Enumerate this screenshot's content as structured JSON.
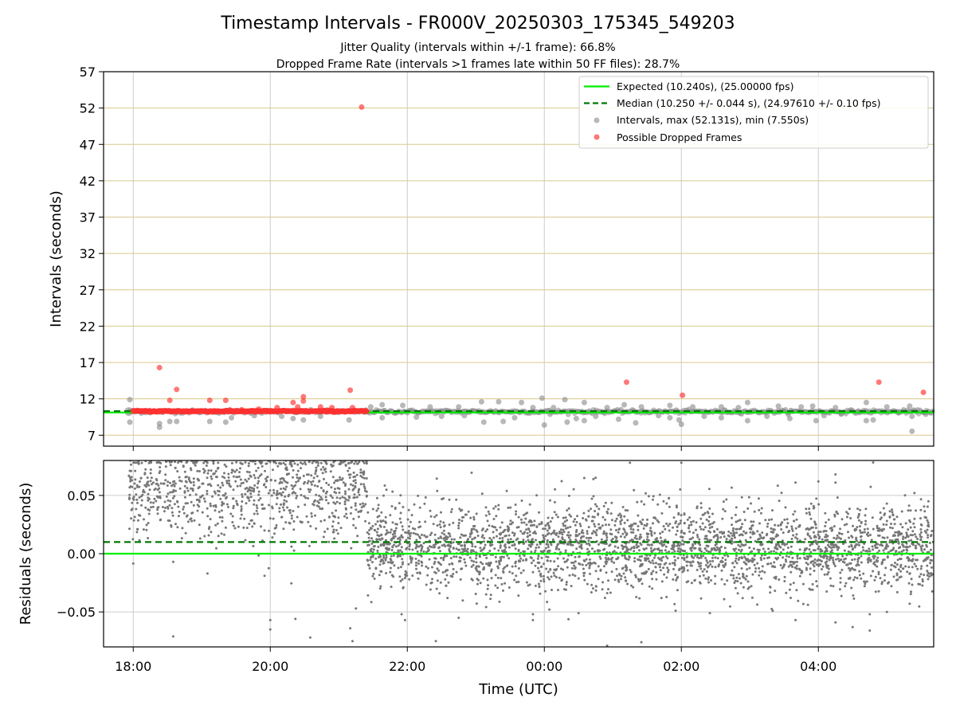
{
  "chart_data": [
    {
      "type": "scatter",
      "title": "Timestamp Intervals - FR000V_20250303_175345_549203",
      "subtitle_lines": [
        "Jitter Quality (intervals within +/-1 frame): 66.8%",
        "Dropped Frame Rate (intervals >1 frames late within 50 FF files): 28.7%"
      ],
      "xlabel": "",
      "ylabel": "Intervals (seconds)",
      "x_axis_type": "time",
      "xlim": [
        "17:34",
        "05:41"
      ],
      "x_ticks": [
        {
          "time": "18:00",
          "label": ""
        },
        {
          "time": "20:00",
          "label": ""
        },
        {
          "time": "22:00",
          "label": ""
        },
        {
          "time": "00:00",
          "label": ""
        },
        {
          "time": "02:00",
          "label": ""
        },
        {
          "time": "04:00",
          "label": ""
        }
      ],
      "ylim": [
        5.5,
        57
      ],
      "y_ticks": [
        7,
        12,
        17,
        22,
        27,
        32,
        37,
        42,
        47,
        52,
        57
      ],
      "grid": "on",
      "grid_colors": {
        "horizontal": "#d8c98c",
        "vertical": "#cccccc"
      },
      "legend_position": "top-right",
      "legend": [
        {
          "label": "Expected (10.240s), (25.00000 fps)",
          "kind": "solid-line",
          "color": "#00ee00"
        },
        {
          "label": "Median (10.250 +/- 0.044 s), (24.97610 +/- 0.10 fps)",
          "kind": "dashed-line",
          "color": "#007a00"
        },
        {
          "label": "Intervals, max (52.131s), min (7.550s)",
          "kind": "marker",
          "color": "#888888"
        },
        {
          "label": "Possible Dropped Frames",
          "kind": "marker",
          "color": "#ff3030"
        }
      ],
      "reference_lines": [
        {
          "name": "expected",
          "y": 10.24,
          "color": "#00ee00",
          "style": "solid"
        },
        {
          "name": "median",
          "y": 10.25,
          "color": "#007a00",
          "style": "dashed"
        }
      ],
      "series": [
        {
          "name": "Intervals",
          "color": "#888888",
          "typical_value": 10.25,
          "outliers": [
            {
              "t": "17:57",
              "y": 11.9
            },
            {
              "t": "17:57",
              "y": 8.8
            },
            {
              "t": "18:23",
              "y": 8.6
            },
            {
              "t": "18:23",
              "y": 8.1
            },
            {
              "t": "18:32",
              "y": 8.9
            },
            {
              "t": "18:38",
              "y": 8.9
            },
            {
              "t": "19:07",
              "y": 8.9
            },
            {
              "t": "19:21",
              "y": 8.8
            },
            {
              "t": "19:26",
              "y": 9.4
            },
            {
              "t": "19:46",
              "y": 9.7
            },
            {
              "t": "20:10",
              "y": 9.6
            },
            {
              "t": "20:20",
              "y": 9.3
            },
            {
              "t": "20:29",
              "y": 9.1
            },
            {
              "t": "20:44",
              "y": 9.6
            },
            {
              "t": "21:09",
              "y": 9.1
            },
            {
              "t": "21:28",
              "y": 10.9
            },
            {
              "t": "21:38",
              "y": 9.4
            },
            {
              "t": "21:38",
              "y": 11.2
            },
            {
              "t": "21:56",
              "y": 11.1
            },
            {
              "t": "22:08",
              "y": 9.5
            },
            {
              "t": "22:20",
              "y": 10.9
            },
            {
              "t": "22:30",
              "y": 9.6
            },
            {
              "t": "22:45",
              "y": 10.9
            },
            {
              "t": "22:50",
              "y": 9.7
            },
            {
              "t": "23:05",
              "y": 11.6
            },
            {
              "t": "23:07",
              "y": 8.8
            },
            {
              "t": "23:20",
              "y": 11.6
            },
            {
              "t": "23:24",
              "y": 8.9
            },
            {
              "t": "23:34",
              "y": 9.4
            },
            {
              "t": "23:40",
              "y": 11.5
            },
            {
              "t": "23:50",
              "y": 10.8
            },
            {
              "t": "23:58",
              "y": 12.1
            },
            {
              "t": "00:00",
              "y": 8.4
            },
            {
              "t": "00:05",
              "y": 9.9
            },
            {
              "t": "00:08",
              "y": 10.8
            },
            {
              "t": "00:18",
              "y": 11.9
            },
            {
              "t": "00:20",
              "y": 8.8
            },
            {
              "t": "00:28",
              "y": 9.3
            },
            {
              "t": "00:35",
              "y": 11.5
            },
            {
              "t": "00:35",
              "y": 9.0
            },
            {
              "t": "00:45",
              "y": 9.6
            },
            {
              "t": "00:55",
              "y": 10.8
            },
            {
              "t": "01:05",
              "y": 9.2
            },
            {
              "t": "01:10",
              "y": 11.2
            },
            {
              "t": "01:20",
              "y": 8.7
            },
            {
              "t": "01:25",
              "y": 10.9
            },
            {
              "t": "01:40",
              "y": 9.7
            },
            {
              "t": "01:50",
              "y": 11.1
            },
            {
              "t": "01:50",
              "y": 9.4
            },
            {
              "t": "01:58",
              "y": 9.1
            },
            {
              "t": "02:00",
              "y": 8.5
            },
            {
              "t": "02:10",
              "y": 10.9
            },
            {
              "t": "02:20",
              "y": 9.6
            },
            {
              "t": "02:35",
              "y": 10.9
            },
            {
              "t": "02:35",
              "y": 9.4
            },
            {
              "t": "02:50",
              "y": 10.8
            },
            {
              "t": "02:58",
              "y": 11.5
            },
            {
              "t": "02:58",
              "y": 9.0
            },
            {
              "t": "03:15",
              "y": 9.6
            },
            {
              "t": "03:25",
              "y": 11.0
            },
            {
              "t": "03:35",
              "y": 9.3
            },
            {
              "t": "03:45",
              "y": 10.9
            },
            {
              "t": "03:55",
              "y": 11.0
            },
            {
              "t": "03:58",
              "y": 9.0
            },
            {
              "t": "04:05",
              "y": 9.7
            },
            {
              "t": "04:15",
              "y": 10.8
            },
            {
              "t": "04:20",
              "y": 9.9
            },
            {
              "t": "04:35",
              "y": 10.2
            },
            {
              "t": "04:42",
              "y": 11.5
            },
            {
              "t": "04:42",
              "y": 9.0
            },
            {
              "t": "04:48",
              "y": 9.1
            },
            {
              "t": "05:00",
              "y": 10.9
            },
            {
              "t": "05:10",
              "y": 10.1
            },
            {
              "t": "05:20",
              "y": 11.0
            },
            {
              "t": "05:22",
              "y": 9.6
            },
            {
              "t": "05:22",
              "y": 7.55
            },
            {
              "t": "05:34",
              "y": 9.9
            }
          ]
        },
        {
          "name": "Possible Dropped Frames",
          "color": "#ff3030",
          "dense_band": {
            "t_start": "18:00",
            "t_end": "21:25",
            "y": 10.3
          },
          "points": [
            {
              "t": "18:23",
              "y": 16.3
            },
            {
              "t": "18:32",
              "y": 11.8
            },
            {
              "t": "18:38",
              "y": 13.3
            },
            {
              "t": "19:07",
              "y": 11.8
            },
            {
              "t": "19:21",
              "y": 11.8
            },
            {
              "t": "19:35",
              "y": 10.5
            },
            {
              "t": "19:50",
              "y": 10.6
            },
            {
              "t": "20:06",
              "y": 10.8
            },
            {
              "t": "20:20",
              "y": 11.5
            },
            {
              "t": "20:24",
              "y": 10.9
            },
            {
              "t": "20:29",
              "y": 12.3
            },
            {
              "t": "20:29",
              "y": 11.7
            },
            {
              "t": "20:44",
              "y": 10.9
            },
            {
              "t": "20:54",
              "y": 10.8
            },
            {
              "t": "21:10",
              "y": 13.2
            },
            {
              "t": "21:12",
              "y": 10.8
            },
            {
              "t": "21:20",
              "y": 52.131
            },
            {
              "t": "01:12",
              "y": 14.3
            },
            {
              "t": "02:01",
              "y": 12.5
            },
            {
              "t": "04:53",
              "y": 14.3
            },
            {
              "t": "05:32",
              "y": 12.9
            }
          ]
        }
      ]
    },
    {
      "type": "scatter",
      "title": "",
      "xlabel": "Time (UTC)",
      "ylabel": "Residuals (seconds)",
      "x_axis_type": "time",
      "xlim": [
        "17:34",
        "05:41"
      ],
      "x_ticks": [
        {
          "time": "18:00",
          "label": "18:00"
        },
        {
          "time": "20:00",
          "label": "20:00"
        },
        {
          "time": "22:00",
          "label": "22:00"
        },
        {
          "time": "00:00",
          "label": "00:00"
        },
        {
          "time": "02:00",
          "label": "02:00"
        },
        {
          "time": "04:00",
          "label": "04:00"
        }
      ],
      "ylim": [
        -0.08,
        0.08
      ],
      "y_ticks": [
        {
          "value": 0.05,
          "label": "0.05"
        },
        {
          "value": 0.0,
          "label": "0.00"
        },
        {
          "value": -0.05,
          "label": "−0.05"
        }
      ],
      "grid": "on",
      "reference_lines": [
        {
          "name": "zero",
          "y": 0.0,
          "color": "#00ee00",
          "style": "solid"
        },
        {
          "name": "median-offset",
          "y": 0.01,
          "color": "#007a00",
          "style": "dashed"
        }
      ],
      "series": [
        {
          "name": "",
          "color": "#777777",
          "segments": [
            {
              "t_start": "17:56",
              "t_end": "21:25",
              "mean": 0.055,
              "spread": 0.02,
              "approx_count": 900
            },
            {
              "t_start": "21:25",
              "t_end": "05:41",
              "mean": 0.005,
              "spread": 0.018,
              "approx_count": 2900
            }
          ],
          "outliers": [
            {
              "t": "18:00",
              "y": -0.0085
            },
            {
              "t": "18:35",
              "y": -0.007
            },
            {
              "t": "18:35",
              "y": -0.071
            },
            {
              "t": "19:05",
              "y": -0.017
            },
            {
              "t": "19:55",
              "y": -0.019
            },
            {
              "t": "20:00",
              "y": -0.057
            },
            {
              "t": "20:00",
              "y": -0.065
            },
            {
              "t": "20:22",
              "y": -0.056
            },
            {
              "t": "20:35",
              "y": -0.072
            },
            {
              "t": "21:10",
              "y": -0.064
            },
            {
              "t": "21:12",
              "y": -0.075
            },
            {
              "t": "21:15",
              "y": -0.047
            },
            {
              "t": "21:55",
              "y": -0.052
            },
            {
              "t": "21:58",
              "y": -0.057
            },
            {
              "t": "22:25",
              "y": -0.075
            },
            {
              "t": "22:45",
              "y": -0.055
            },
            {
              "t": "23:50",
              "y": -0.052
            },
            {
              "t": "23:50",
              "y": -0.057
            },
            {
              "t": "00:30",
              "y": -0.051
            },
            {
              "t": "00:55",
              "y": -0.079
            },
            {
              "t": "01:25",
              "y": -0.076
            },
            {
              "t": "01:55",
              "y": -0.049
            },
            {
              "t": "02:25",
              "y": -0.051
            },
            {
              "t": "03:20",
              "y": -0.049
            },
            {
              "t": "03:40",
              "y": -0.057
            },
            {
              "t": "04:15",
              "y": -0.059
            },
            {
              "t": "04:30",
              "y": -0.063
            },
            {
              "t": "04:45",
              "y": -0.052
            },
            {
              "t": "04:45",
              "y": -0.066
            },
            {
              "t": "05:00",
              "y": -0.05
            },
            {
              "t": "05:20",
              "y": -0.043
            },
            {
              "t": "00:35",
              "y": 0.065
            },
            {
              "t": "00:43",
              "y": 0.064
            },
            {
              "t": "01:15",
              "y": 0.078
            },
            {
              "t": "02:00",
              "y": 0.078
            },
            {
              "t": "03:40",
              "y": 0.061
            },
            {
              "t": "04:00",
              "y": 0.062
            },
            {
              "t": "04:15",
              "y": 0.068
            },
            {
              "t": "04:15",
              "y": 0.061
            }
          ]
        }
      ]
    }
  ]
}
